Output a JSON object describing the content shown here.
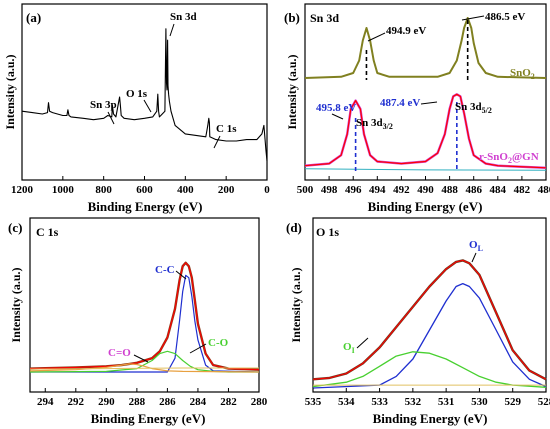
{
  "panels": [
    {
      "id": "a",
      "letter": "(a)",
      "xlabel": "Binding Energy (eV)",
      "ylabel": "Intensity (a.u.)",
      "xticks": [
        1200,
        1000,
        800,
        600,
        400,
        200,
        0
      ],
      "annotations": [
        "Sn 3d",
        "O 1s",
        "Sn 3p",
        "C 1s"
      ]
    },
    {
      "id": "b",
      "letter": "(b)",
      "title": "Sn 3d",
      "xlabel": "Binding Energy (eV)",
      "ylabel": "Intensity (a.u.)",
      "xticks": [
        500,
        498,
        496,
        494,
        492,
        490,
        488,
        486,
        484,
        482,
        480
      ],
      "annotations": [
        "494.9 eV",
        "486.5 eV",
        "495.8 eV",
        "487.4 eV",
        "Sn 3d",
        "3/2",
        "Sn 3d",
        "5/2",
        "SnO",
        "2",
        "r-SnO",
        "2",
        "@GN"
      ]
    },
    {
      "id": "c",
      "letter": "(c)",
      "title": "C 1s",
      "xlabel": "Binding Energy (eV)",
      "ylabel": "Intensity (a.u.)",
      "xticks": [
        294,
        292,
        290,
        288,
        286,
        284,
        282,
        280
      ],
      "annotations": [
        "C-C",
        "C-O",
        "C=O"
      ]
    },
    {
      "id": "d",
      "letter": "(d)",
      "title": "O 1s",
      "xlabel": "Binding Energy (eV)",
      "ylabel": "Intensity (a.u.)",
      "xticks": [
        535,
        534,
        533,
        532,
        531,
        530,
        529,
        528
      ],
      "annotations": [
        "O",
        "L",
        "O",
        "I"
      ]
    }
  ],
  "colors": {
    "survey": "#000000",
    "sno2": "#808020",
    "composite": "#d040d0",
    "fit": "#ff0000",
    "baseline": "#e0c060",
    "cc": "#1f2fd0",
    "co": "#48d030",
    "ceo": "#e8a040",
    "ol": "#1f2fd0",
    "oi": "#48d030",
    "marker_blue": "#1f2fd0",
    "dashed": "#000000"
  },
  "chart_data": [
    {
      "type": "line",
      "panel": "a",
      "xlim": [
        1200,
        0
      ],
      "series": [
        {
          "x": [
            1200,
            1150,
            1100,
            1075,
            1070,
            1065,
            1050,
            1000,
            980,
            975,
            970,
            960,
            900,
            850,
            800,
            780,
            760,
            757,
            752,
            740,
            722,
            718,
            714,
            700,
            650,
            600,
            560,
            540,
            535,
            531,
            527,
            520,
            500,
            495,
            492,
            490,
            487,
            485,
            482,
            478,
            470,
            450,
            400,
            300,
            290,
            285,
            282,
            280,
            250,
            200,
            150,
            100,
            50,
            25,
            15,
            5,
            0
          ],
          "y": [
            40,
            39,
            38,
            39,
            46,
            40,
            39,
            37,
            37,
            41,
            37,
            36,
            35,
            34,
            35,
            37,
            36,
            44,
            38,
            36,
            50,
            44,
            37,
            35,
            34,
            35,
            36,
            40,
            52,
            40,
            36,
            37,
            40,
            98,
            60,
            55,
            90,
            58,
            52,
            47,
            40,
            30,
            24,
            22,
            30,
            35,
            32,
            22,
            20,
            19,
            19,
            20,
            20,
            24,
            30,
            12,
            5
          ]
        }
      ]
    },
    {
      "type": "line",
      "panel": "b",
      "xlim": [
        500,
        480
      ],
      "series": [
        {
          "x": [
            500,
            497,
            496,
            495.5,
            495.2,
            494.9,
            494.6,
            494.3,
            494,
            493,
            489,
            488,
            487.4,
            487,
            486.8,
            486.5,
            486.2,
            486,
            485.6,
            485,
            484,
            480
          ],
          "y": [
            0,
            1,
            4,
            14,
            30,
            40,
            30,
            14,
            4,
            1,
            1,
            4,
            14,
            30,
            40,
            48,
            40,
            28,
            12,
            4,
            1,
            0
          ]
        },
        {
          "x": [
            500,
            498,
            497,
            496.5,
            496.2,
            495.8,
            495.4,
            495.1,
            494.6,
            494,
            492,
            490,
            489,
            488.4,
            488,
            487.7,
            487.4,
            487.1,
            486.8,
            486.4,
            486,
            485,
            484,
            480
          ],
          "y": [
            3,
            4,
            8,
            18,
            30,
            34,
            30,
            18,
            8,
            5,
            4,
            5,
            9,
            18,
            30,
            36,
            37,
            36,
            28,
            16,
            8,
            4,
            3,
            2
          ]
        },
        {
          "x": [
            500,
            498,
            497,
            496.5,
            496.2,
            495.8,
            495.4,
            495.1,
            494.6,
            494,
            492,
            490,
            489,
            488.4,
            488,
            487.7,
            487.4,
            487.1,
            486.8,
            486.4,
            486,
            485,
            484,
            480
          ],
          "y": [
            3,
            4,
            8,
            18,
            30,
            34,
            30,
            18,
            8,
            5,
            4,
            5,
            9,
            18,
            30,
            36,
            37,
            36,
            28,
            16,
            8,
            4,
            3,
            2
          ]
        },
        {
          "x": [
            500,
            490,
            480
          ],
          "y": [
            1.5,
            1,
            0.8
          ]
        }
      ]
    },
    {
      "type": "line",
      "panel": "c",
      "xlim": [
        295,
        280
      ],
      "series": [
        {
          "x": [
            295,
            292,
            290,
            289,
            288,
            287,
            286.5,
            286,
            285.5,
            285.2,
            285,
            284.8,
            284.6,
            284.4,
            284.2,
            284,
            283.5,
            283,
            282,
            280
          ],
          "y": [
            3,
            4,
            5,
            6,
            8,
            12,
            18,
            30,
            55,
            80,
            92,
            95,
            92,
            82,
            62,
            42,
            16,
            6,
            3,
            2
          ]
        },
        {
          "x": [
            295,
            292,
            290,
            289,
            288,
            287,
            286.5,
            286,
            285.5,
            285.2,
            285,
            284.8,
            284.6,
            284.4,
            284.2,
            284,
            283.5,
            283,
            282,
            280
          ],
          "y": [
            3,
            4,
            5,
            6,
            8,
            12,
            18,
            30,
            55,
            80,
            92,
            95,
            92,
            82,
            62,
            42,
            16,
            6,
            3,
            2
          ]
        },
        {
          "x": [
            295,
            286,
            285.5,
            285.2,
            285,
            284.8,
            284.6,
            284.4,
            284.2,
            284,
            283.5,
            283,
            280
          ],
          "y": [
            0,
            0,
            12,
            45,
            70,
            84,
            82,
            66,
            44,
            28,
            6,
            1,
            0
          ]
        },
        {
          "x": [
            295,
            290,
            288,
            287,
            286.5,
            286,
            285.5,
            285,
            284.5,
            284,
            283,
            282,
            280
          ],
          "y": [
            0,
            0.5,
            3,
            10,
            16,
            18,
            16,
            10,
            5,
            2,
            0.5,
            0,
            0
          ]
        },
        {
          "x": [
            295,
            292,
            290,
            289,
            288.5,
            288,
            287.5,
            287,
            286,
            285,
            280
          ],
          "y": [
            1,
            2,
            4,
            6,
            7,
            6.5,
            5,
            3,
            1,
            0.5,
            0
          ]
        },
        {
          "x": [
            295,
            290,
            285,
            280
          ],
          "y": [
            2.5,
            3,
            3.5,
            3.5
          ]
        }
      ]
    },
    {
      "type": "line",
      "panel": "d",
      "xlim": [
        535,
        528
      ],
      "series": [
        {
          "x": [
            535,
            534.5,
            534,
            533.5,
            533,
            532.5,
            532,
            531.5,
            531,
            530.7,
            530.5,
            530.3,
            530,
            529.5,
            529,
            528.5,
            528
          ],
          "y": [
            6,
            7,
            10,
            17,
            28,
            42,
            56,
            70,
            82,
            87,
            88,
            86,
            78,
            52,
            26,
            12,
            6
          ]
        },
        {
          "x": [
            535,
            534.5,
            534,
            533.5,
            533,
            532.5,
            532,
            531.5,
            531,
            530.7,
            530.5,
            530.3,
            530,
            529.5,
            529,
            528.5,
            528
          ],
          "y": [
            6,
            7,
            10,
            17,
            28,
            42,
            56,
            70,
            82,
            87,
            88,
            86,
            78,
            52,
            26,
            12,
            6
          ]
        },
        {
          "x": [
            535,
            533,
            532.5,
            532,
            531.5,
            531,
            530.7,
            530.5,
            530.3,
            530,
            529.5,
            529,
            528.5,
            528
          ],
          "y": [
            0,
            2,
            8,
            20,
            40,
            60,
            70,
            72,
            70,
            62,
            40,
            18,
            6,
            1
          ]
        },
        {
          "x": [
            535,
            534,
            533.5,
            533,
            532.5,
            532,
            531.5,
            531,
            530.5,
            530,
            529.5,
            529,
            528
          ],
          "y": [
            1,
            4,
            8,
            15,
            22,
            25,
            24,
            20,
            14,
            8,
            4,
            2,
            0.5
          ]
        },
        {
          "x": [
            535,
            531,
            528
          ],
          "y": [
            2,
            2,
            2
          ]
        }
      ]
    }
  ]
}
